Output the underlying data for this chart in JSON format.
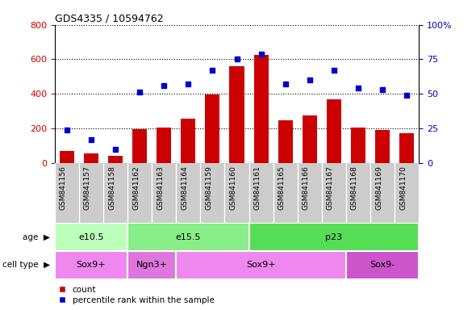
{
  "title": "GDS4335 / 10594762",
  "samples": [
    "GSM841156",
    "GSM841157",
    "GSM841158",
    "GSM841162",
    "GSM841163",
    "GSM841164",
    "GSM841159",
    "GSM841160",
    "GSM841161",
    "GSM841165",
    "GSM841166",
    "GSM841167",
    "GSM841168",
    "GSM841169",
    "GSM841170"
  ],
  "counts": [
    70,
    55,
    40,
    195,
    205,
    255,
    395,
    560,
    625,
    245,
    275,
    370,
    205,
    190,
    170
  ],
  "percentiles": [
    24,
    17,
    10,
    51,
    56,
    57,
    67,
    75,
    79,
    57,
    60,
    67,
    54,
    53,
    49
  ],
  "ylim_left": [
    0,
    800
  ],
  "ylim_right": [
    0,
    100
  ],
  "yticks_left": [
    0,
    200,
    400,
    600,
    800
  ],
  "yticks_right": [
    0,
    25,
    50,
    75,
    100
  ],
  "bar_color": "#cc0000",
  "dot_color": "#0000cc",
  "age_groups": [
    {
      "label": "e10.5",
      "start": 0,
      "end": 3,
      "color": "#bbffbb"
    },
    {
      "label": "e15.5",
      "start": 3,
      "end": 8,
      "color": "#88ee88"
    },
    {
      "label": "p23",
      "start": 8,
      "end": 15,
      "color": "#55dd55"
    }
  ],
  "cell_groups": [
    {
      "label": "Sox9+",
      "start": 0,
      "end": 3,
      "color": "#ee88ee"
    },
    {
      "label": "Ngn3+",
      "start": 3,
      "end": 5,
      "color": "#dd77dd"
    },
    {
      "label": "Sox9+",
      "start": 5,
      "end": 12,
      "color": "#ee88ee"
    },
    {
      "label": "Sox9-",
      "start": 12,
      "end": 15,
      "color": "#cc55cc"
    }
  ],
  "legend_count_color": "#cc0000",
  "legend_pct_color": "#0000cc",
  "background_color": "#ffffff",
  "plot_bg_color": "#ffffff",
  "xticklabel_bg": "#cccccc"
}
